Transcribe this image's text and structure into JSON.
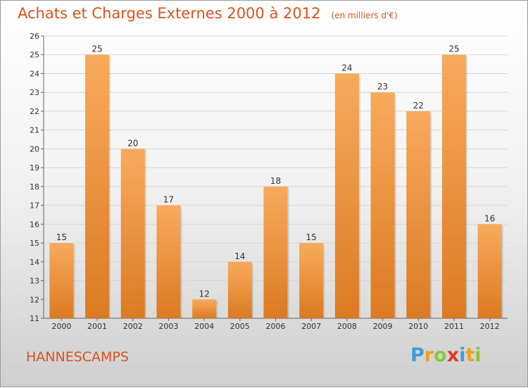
{
  "chart_data": {
    "type": "bar",
    "title": "Achats et Charges Externes 2000 à 2012",
    "subtitle": "(en milliers d'€)",
    "categories": [
      "2000",
      "2001",
      "2002",
      "2003",
      "2004",
      "2005",
      "2006",
      "2007",
      "2008",
      "2009",
      "2010",
      "2011",
      "2012"
    ],
    "values": [
      15,
      25,
      20,
      17,
      12,
      14,
      18,
      15,
      24,
      23,
      22,
      25,
      16
    ],
    "xlabel": "",
    "ylabel": "",
    "ylim": [
      11,
      26
    ],
    "yticks": [
      11,
      12,
      13,
      14,
      15,
      16,
      17,
      18,
      19,
      20,
      21,
      22,
      23,
      24,
      25,
      26
    ],
    "grid": true,
    "colors": {
      "bar_light": "#f8aa5c",
      "bar_dark": "#dc7a22",
      "title": "#d9541e"
    }
  },
  "footer": {
    "commune": "HANNESCAMPS",
    "brand_letters": [
      {
        "char": "P",
        "color": "#3aa0dc"
      },
      {
        "char": "r",
        "color": "#f0a020"
      },
      {
        "char": "o",
        "color": "#8cc63f"
      },
      {
        "char": "x",
        "color": "#e03a2a"
      },
      {
        "char": "i",
        "color": "#3aa0dc"
      },
      {
        "char": "t",
        "color": "#f0a020"
      },
      {
        "char": "i",
        "color": "#8cc63f"
      }
    ]
  }
}
